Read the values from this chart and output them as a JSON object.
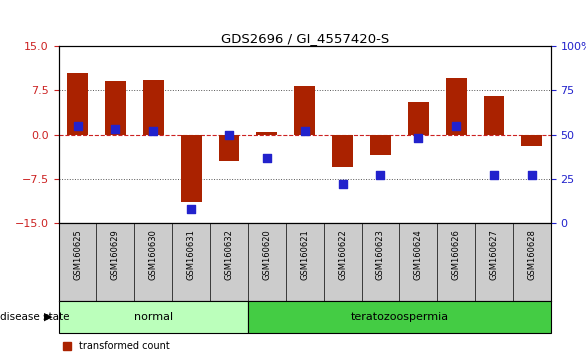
{
  "title": "GDS2696 / GI_4557420-S",
  "samples": [
    "GSM160625",
    "GSM160629",
    "GSM160630",
    "GSM160631",
    "GSM160632",
    "GSM160620",
    "GSM160621",
    "GSM160622",
    "GSM160623",
    "GSM160624",
    "GSM160626",
    "GSM160627",
    "GSM160628"
  ],
  "transformed_count": [
    10.5,
    9.0,
    9.2,
    -11.5,
    -4.5,
    0.5,
    8.2,
    -5.5,
    -3.5,
    5.5,
    9.5,
    6.5,
    -2.0
  ],
  "percentile_rank": [
    55,
    53,
    52,
    8,
    50,
    37,
    52,
    22,
    27,
    48,
    55,
    27,
    27
  ],
  "disease_state": [
    "normal",
    "normal",
    "normal",
    "normal",
    "normal",
    "teratozoospermia",
    "teratozoospermia",
    "teratozoospermia",
    "teratozoospermia",
    "teratozoospermia",
    "teratozoospermia",
    "teratozoospermia",
    "teratozoospermia"
  ],
  "ylim_left": [
    -15,
    15
  ],
  "ylim_right": [
    0,
    100
  ],
  "yticks_left": [
    -15,
    -7.5,
    0,
    7.5,
    15
  ],
  "yticks_right": [
    0,
    25,
    50,
    75,
    100
  ],
  "bar_color": "#aa2200",
  "dot_color": "#2222cc",
  "normal_color": "#bbffbb",
  "terato_color": "#44cc44",
  "label_bg_color": "#cccccc",
  "hline_color": "#cc2222",
  "grid_color": "#555555",
  "bg_color": "#ffffff",
  "tick_color_left": "#cc2222",
  "tick_color_right": "#2222cc",
  "bar_width": 0.55,
  "dot_size": 40
}
